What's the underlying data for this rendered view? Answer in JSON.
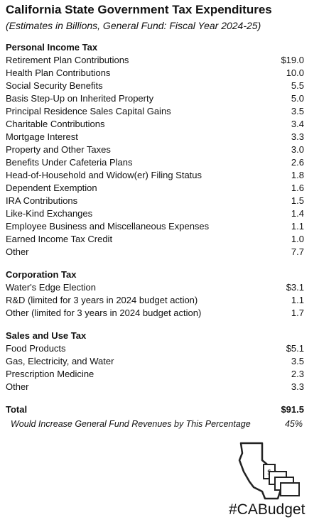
{
  "header": {
    "title": "California State Government Tax Expenditures",
    "subtitle": "(Estimates in Billions, General Fund: Fiscal Year 2024-25)"
  },
  "sections": [
    {
      "heading": "Personal Income Tax",
      "rows": [
        [
          "Retirement Plan Contributions",
          "$19.0"
        ],
        [
          "Health Plan Contributions",
          "10.0"
        ],
        [
          "Social Security Benefits",
          "5.5"
        ],
        [
          "Basis Step-Up on Inherited Property",
          "5.0"
        ],
        [
          "Principal Residence Sales Capital Gains",
          "3.5"
        ],
        [
          "Charitable Contributions",
          "3.4"
        ],
        [
          "Mortgage Interest",
          "3.3"
        ],
        [
          "Property and Other Taxes",
          "3.0"
        ],
        [
          "Benefits Under Cafeteria Plans",
          "2.6"
        ],
        [
          "Head-of-Household and Widow(er) Filing Status",
          "1.8"
        ],
        [
          "Dependent Exemption",
          "1.6"
        ],
        [
          "IRA Contributions",
          "1.5"
        ],
        [
          "Like-Kind Exchanges",
          "1.4"
        ],
        [
          "Employee Business and Miscellaneous Expenses",
          "1.1"
        ],
        [
          "Earned Income Tax Credit",
          "1.0"
        ],
        [
          "Other",
          "7.7"
        ]
      ]
    },
    {
      "heading": "Corporation Tax",
      "rows": [
        [
          "Water's Edge Election",
          "$3.1"
        ],
        [
          "R&D (limited for 3 years in 2024 budget action)",
          "1.1"
        ],
        [
          "Other (limited for 3 years in 2024 budget action)",
          "1.7"
        ]
      ]
    },
    {
      "heading": "Sales and Use Tax",
      "rows": [
        [
          "Food Products",
          "$5.1"
        ],
        [
          "Gas, Electricity, and Water",
          "3.5"
        ],
        [
          "Prescription Medicine",
          "2.3"
        ],
        [
          "Other",
          "3.3"
        ]
      ]
    }
  ],
  "total": {
    "label": "Total",
    "value": "$91.5"
  },
  "note": {
    "label": "Would Increase General Fund Revenues by This Percentage",
    "value": "45%"
  },
  "logo": {
    "hashtag": "#CABudget"
  }
}
